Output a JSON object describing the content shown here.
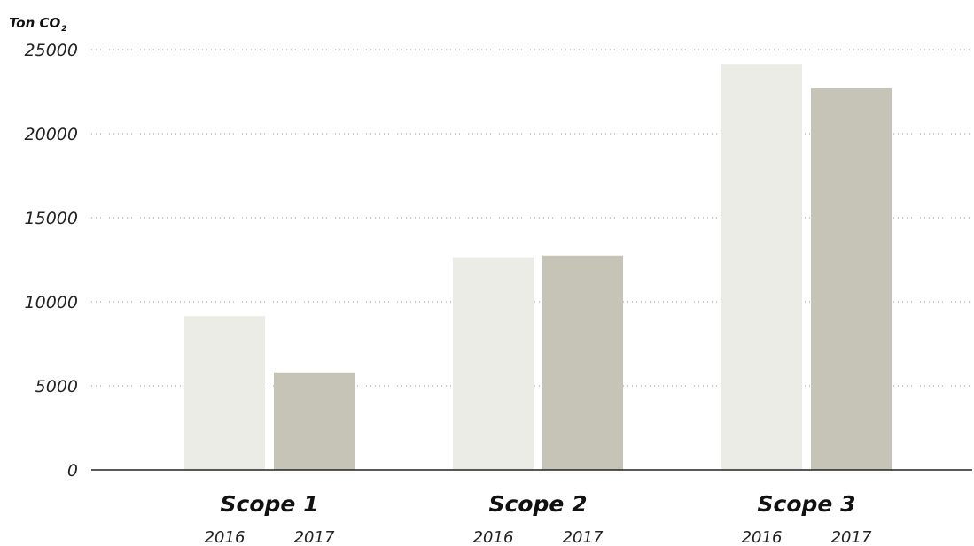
{
  "chart_data": {
    "type": "bar",
    "ylabel": "Ton CO",
    "ylabel_subscript": "2",
    "categories": [
      "Scope 1",
      "Scope 2",
      "Scope 3"
    ],
    "series": [
      {
        "name": "2016",
        "values": [
          9150,
          12650,
          24150
        ],
        "color": "#ecece6"
      },
      {
        "name": "2017",
        "values": [
          5800,
          12750,
          22700
        ],
        "color": "#c6c4b7"
      }
    ],
    "ylim": [
      0,
      25000
    ],
    "yticks": [
      "0",
      "5000",
      "10000",
      "15000",
      "20000",
      "25000"
    ],
    "grid": true,
    "grid_style": "dotted",
    "axis_color": "#222222",
    "grid_color": "#999999"
  }
}
